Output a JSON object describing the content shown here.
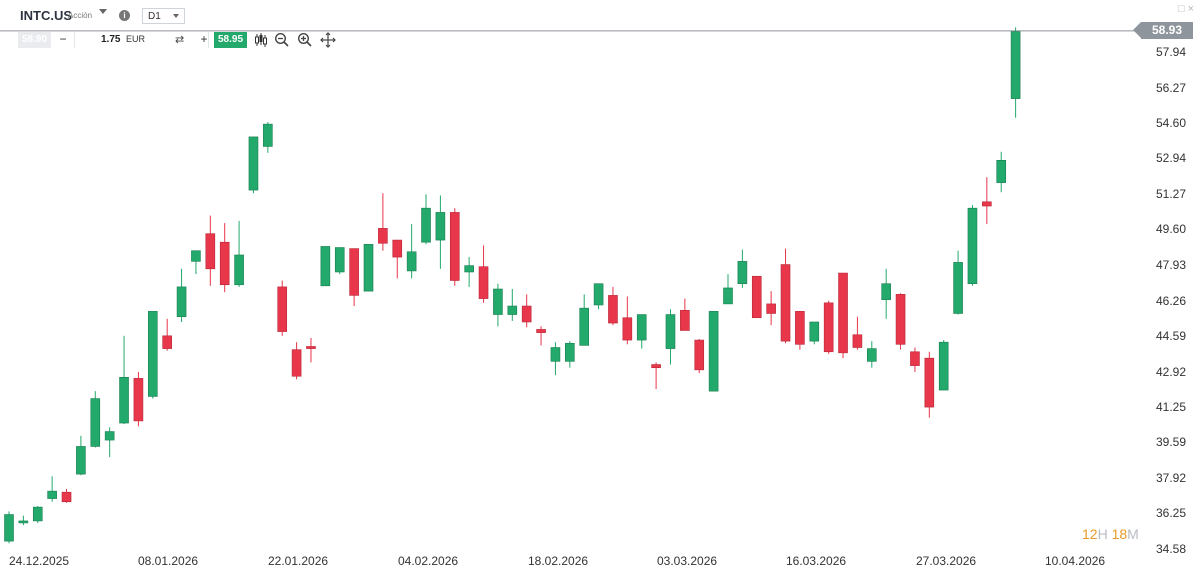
{
  "header": {
    "symbol": "INTC.US",
    "asset_type": "Acción",
    "timeframe": "D1"
  },
  "trade": {
    "sell_price": "58.90",
    "quantity": "1.75",
    "currency": "EUR",
    "buy_price": "58.95"
  },
  "window_controls": {
    "restore_symbol": "□",
    "close_symbol": "×"
  },
  "countdown": {
    "hours": "12",
    "hours_unit": "H",
    "minutes": "18",
    "minutes_unit": "M"
  },
  "price_tag": "58.93",
  "colors": {
    "up": "#22a96b",
    "down": "#e8364a",
    "price_line": "#8f959c"
  },
  "chart_data": {
    "type": "candlestick",
    "current_price": 58.93,
    "y_ticks": [
      "57.94",
      "56.27",
      "54.60",
      "52.94",
      "51.27",
      "49.60",
      "47.93",
      "46.26",
      "44.59",
      "42.92",
      "41.25",
      "39.59",
      "37.92",
      "36.25",
      "34.58"
    ],
    "x_ticks": [
      "24.12.2025",
      "08.01.2026",
      "22.01.2026",
      "04.02.2026",
      "18.02.2026",
      "03.03.2026",
      "16.03.2026",
      "27.03.2026",
      "10.04.2026"
    ],
    "candles": [
      [
        34.95,
        36.2,
        34.85,
        36.35
      ],
      [
        35.85,
        35.9,
        35.7,
        36.15
      ],
      [
        35.9,
        36.55,
        35.8,
        36.6
      ],
      [
        36.95,
        37.3,
        36.8,
        38.0
      ],
      [
        37.25,
        36.8,
        36.75,
        37.4
      ],
      [
        38.1,
        39.4,
        38.05,
        39.9
      ],
      [
        39.4,
        41.65,
        39.35,
        42.0
      ],
      [
        39.7,
        40.1,
        38.9,
        40.3
      ],
      [
        40.5,
        42.65,
        40.45,
        44.6
      ],
      [
        42.6,
        40.6,
        40.35,
        42.9
      ],
      [
        41.75,
        45.75,
        41.65,
        45.75
      ],
      [
        44.6,
        44.0,
        43.9,
        45.4
      ],
      [
        45.5,
        46.9,
        45.25,
        47.75
      ],
      [
        48.1,
        48.6,
        47.5,
        48.6
      ],
      [
        49.4,
        47.75,
        46.95,
        50.25
      ],
      [
        49.0,
        47.0,
        46.65,
        49.9
      ],
      [
        47.0,
        48.4,
        46.9,
        50.0
      ],
      [
        51.45,
        53.95,
        51.3,
        53.95
      ],
      [
        53.5,
        54.55,
        53.2,
        54.65
      ],
      [
        46.9,
        44.8,
        44.6,
        47.2
      ],
      [
        43.95,
        42.7,
        42.55,
        44.3
      ],
      [
        44.1,
        44.0,
        43.35,
        44.5
      ],
      [
        46.95,
        48.8,
        46.95,
        48.8
      ],
      [
        47.6,
        48.75,
        47.5,
        48.75
      ],
      [
        48.7,
        46.5,
        46.0,
        48.7
      ],
      [
        46.7,
        48.9,
        46.7,
        48.9
      ],
      [
        49.65,
        48.95,
        48.6,
        51.3
      ],
      [
        49.1,
        48.3,
        47.3,
        49.1
      ],
      [
        47.65,
        48.55,
        47.3,
        49.85
      ],
      [
        49.0,
        50.6,
        48.9,
        51.25
      ],
      [
        49.1,
        50.4,
        47.75,
        51.2
      ],
      [
        50.4,
        47.2,
        46.95,
        50.6
      ],
      [
        47.6,
        47.9,
        46.9,
        48.3
      ],
      [
        47.85,
        46.35,
        46.15,
        48.85
      ],
      [
        45.6,
        46.8,
        45.05,
        47.05
      ],
      [
        45.6,
        46.0,
        45.3,
        46.8
      ],
      [
        46.0,
        45.25,
        45.0,
        46.55
      ],
      [
        44.9,
        44.75,
        44.15,
        45.05
      ],
      [
        43.4,
        44.05,
        42.75,
        44.3
      ],
      [
        43.4,
        44.25,
        43.1,
        44.35
      ],
      [
        44.15,
        45.9,
        44.15,
        46.55
      ],
      [
        46.05,
        47.05,
        45.85,
        47.05
      ],
      [
        46.5,
        45.2,
        45.1,
        46.9
      ],
      [
        45.45,
        44.4,
        44.2,
        46.45
      ],
      [
        44.4,
        45.6,
        44.0,
        45.6
      ],
      [
        43.25,
        43.1,
        42.1,
        43.35
      ],
      [
        44.0,
        45.6,
        43.25,
        45.85
      ],
      [
        45.8,
        44.85,
        44.85,
        46.35
      ],
      [
        44.4,
        43.0,
        42.85,
        44.45
      ],
      [
        42.0,
        45.75,
        42.0,
        45.75
      ],
      [
        46.1,
        46.85,
        46.1,
        47.5
      ],
      [
        47.05,
        48.1,
        46.85,
        48.65
      ],
      [
        47.4,
        45.45,
        45.45,
        47.4
      ],
      [
        46.1,
        45.65,
        45.1,
        46.7
      ],
      [
        47.95,
        44.35,
        44.25,
        48.7
      ],
      [
        45.75,
        44.2,
        43.95,
        45.75
      ],
      [
        44.35,
        45.25,
        44.2,
        45.25
      ],
      [
        46.15,
        43.85,
        43.75,
        46.25
      ],
      [
        47.55,
        43.8,
        43.55,
        47.55
      ],
      [
        44.65,
        44.05,
        43.95,
        45.5
      ],
      [
        43.4,
        44.0,
        43.1,
        44.35
      ],
      [
        46.3,
        47.05,
        45.4,
        47.75
      ],
      [
        46.55,
        44.2,
        43.95,
        46.6
      ],
      [
        43.85,
        43.2,
        42.9,
        44.05
      ],
      [
        43.55,
        41.25,
        40.75,
        43.85
      ],
      [
        42.05,
        44.3,
        42.05,
        44.4
      ],
      [
        45.65,
        48.05,
        45.6,
        48.6
      ],
      [
        47.05,
        50.6,
        46.95,
        50.75
      ],
      [
        50.9,
        50.7,
        49.85,
        52.05
      ],
      [
        51.8,
        52.85,
        51.35,
        53.25
      ],
      [
        55.75,
        58.9,
        54.85,
        59.1
      ]
    ]
  }
}
